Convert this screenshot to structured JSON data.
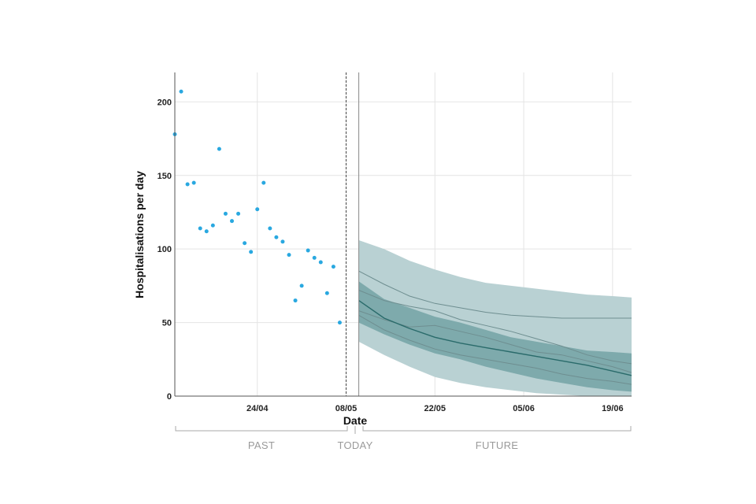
{
  "chart_data": {
    "type": "line",
    "xlabel": "Date",
    "ylabel": "Hospitalisations per day",
    "ylim": [
      0,
      220
    ],
    "yticks": [
      0,
      50,
      100,
      150,
      200
    ],
    "x_start": "2021-04-11",
    "x_end": "2021-06-22",
    "xticks": [
      {
        "date": "2021-04-24",
        "label": "24/04"
      },
      {
        "date": "2021-05-08",
        "label": "08/05"
      },
      {
        "date": "2021-05-22",
        "label": "22/05"
      },
      {
        "date": "2021-06-05",
        "label": "05/06"
      },
      {
        "date": "2021-06-19",
        "label": "19/06"
      }
    ],
    "grid": true,
    "last_data_date": "2021-05-08",
    "today_date": "2021-05-10",
    "periods": [
      {
        "label": "PAST"
      },
      {
        "label": "TODAY"
      },
      {
        "label": "FUTURE"
      }
    ],
    "observed": {
      "color": "#29a8e0",
      "points": [
        {
          "x": "2021-04-11",
          "y": 178
        },
        {
          "x": "2021-04-12",
          "y": 207
        },
        {
          "x": "2021-04-13",
          "y": 144
        },
        {
          "x": "2021-04-14",
          "y": 145
        },
        {
          "x": "2021-04-15",
          "y": 114
        },
        {
          "x": "2021-04-16",
          "y": 112
        },
        {
          "x": "2021-04-17",
          "y": 116
        },
        {
          "x": "2021-04-18",
          "y": 168
        },
        {
          "x": "2021-04-19",
          "y": 124
        },
        {
          "x": "2021-04-20",
          "y": 119
        },
        {
          "x": "2021-04-21",
          "y": 124
        },
        {
          "x": "2021-04-22",
          "y": 104
        },
        {
          "x": "2021-04-23",
          "y": 98
        },
        {
          "x": "2021-04-24",
          "y": 127
        },
        {
          "x": "2021-04-25",
          "y": 145
        },
        {
          "x": "2021-04-26",
          "y": 114
        },
        {
          "x": "2021-04-27",
          "y": 108
        },
        {
          "x": "2021-04-28",
          "y": 105
        },
        {
          "x": "2021-04-29",
          "y": 96
        },
        {
          "x": "2021-04-30",
          "y": 65
        },
        {
          "x": "2021-05-01",
          "y": 75
        },
        {
          "x": "2021-05-02",
          "y": 99
        },
        {
          "x": "2021-05-03",
          "y": 94
        },
        {
          "x": "2021-05-04",
          "y": 91
        },
        {
          "x": "2021-05-05",
          "y": 70
        },
        {
          "x": "2021-05-06",
          "y": 88
        },
        {
          "x": "2021-05-07",
          "y": 50
        }
      ]
    },
    "forecast": {
      "outer_band_color": "#b9d1d3",
      "inner_band_color": "#7eaaac",
      "median_color": "#2a6b6b",
      "trajectory_color": "#6e8e90",
      "x": [
        "2021-05-10",
        "2021-05-14",
        "2021-05-18",
        "2021-05-22",
        "2021-05-26",
        "2021-05-30",
        "2021-06-03",
        "2021-06-07",
        "2021-06-11",
        "2021-06-15",
        "2021-06-19",
        "2021-06-22"
      ],
      "outer_upper": [
        106,
        100,
        92,
        86,
        81,
        77,
        75,
        73,
        71,
        69,
        68,
        67
      ],
      "outer_lower": [
        37,
        28,
        20,
        13,
        9,
        6,
        4,
        2,
        1,
        0,
        0,
        0
      ],
      "inner_upper": [
        78,
        66,
        60,
        54,
        50,
        45,
        40,
        37,
        34,
        31,
        30,
        29
      ],
      "inner_lower": [
        50,
        42,
        35,
        29,
        25,
        20,
        16,
        12,
        9,
        6,
        4,
        3
      ],
      "median": [
        65,
        53,
        46,
        40,
        36,
        33,
        30,
        27,
        24,
        21,
        17,
        14
      ],
      "trajectories": [
        [
          85,
          76,
          68,
          63,
          60,
          57,
          55,
          54,
          53,
          53,
          53,
          53
        ],
        [
          72,
          65,
          61,
          58,
          52,
          48,
          44,
          39,
          34,
          28,
          24,
          22
        ],
        [
          58,
          52,
          47,
          48,
          44,
          40,
          35,
          30,
          28,
          24,
          20,
          16
        ],
        [
          55,
          45,
          38,
          32,
          28,
          25,
          22,
          19,
          15,
          12,
          10,
          8
        ]
      ]
    }
  }
}
